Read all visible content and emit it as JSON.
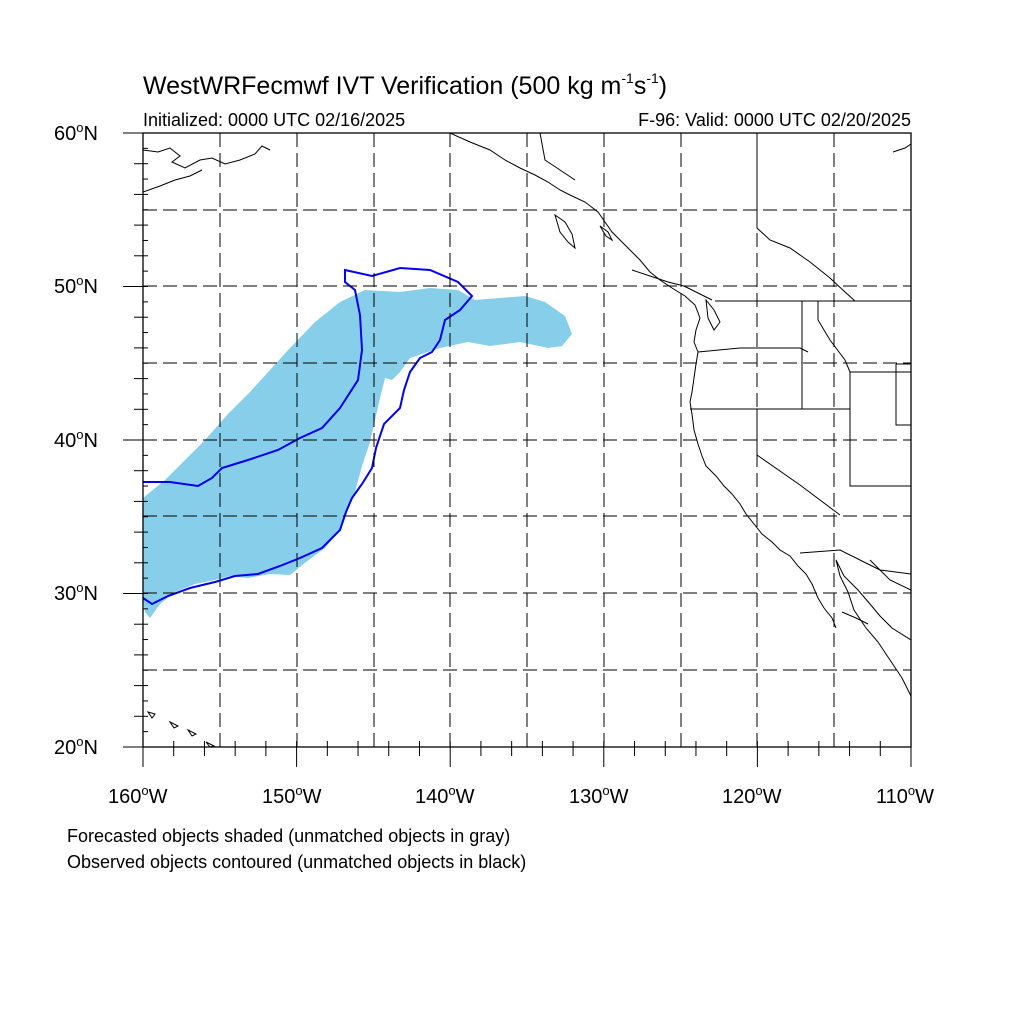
{
  "header": {
    "title_prefix": "WestWRFecmwf IVT Verification (500 kg m",
    "title_sup1": "-1",
    "title_mid": "s",
    "title_sup2": "-1",
    "title_suffix": ")",
    "initialized": "Initialized: 0000 UTC 02/16/2025",
    "valid": "F-96: Valid: 0000 UTC 02/20/2025"
  },
  "axes": {
    "lat_labels": [
      {
        "num": "60",
        "sym": "o",
        "hem": "N"
      },
      {
        "num": "50",
        "sym": "o",
        "hem": "N"
      },
      {
        "num": "40",
        "sym": "o",
        "hem": "N"
      },
      {
        "num": "30",
        "sym": "o",
        "hem": "N"
      },
      {
        "num": "20",
        "sym": "o",
        "hem": "N"
      }
    ],
    "lon_labels": [
      {
        "num": "160",
        "sym": "o",
        "hem": "W"
      },
      {
        "num": "150",
        "sym": "o",
        "hem": "W"
      },
      {
        "num": "140",
        "sym": "o",
        "hem": "W"
      },
      {
        "num": "130",
        "sym": "o",
        "hem": "W"
      },
      {
        "num": "120",
        "sym": "o",
        "hem": "W"
      },
      {
        "num": "110",
        "sym": "o",
        "hem": "W"
      }
    ],
    "lat_range": [
      20,
      60
    ],
    "lon_range": [
      -160,
      -110
    ],
    "grid_spacing_deg": 5,
    "grid_style": "dashed"
  },
  "legend": {
    "line1": "Forecasted objects shaded (unmatched objects in gray)",
    "line2": "Observed objects contoured (unmatched objects in black)"
  },
  "colors": {
    "forecast_fill": "#87ceeb",
    "observed_contour": "#0000ee",
    "coast": "#000000",
    "grid": "#000000"
  }
}
